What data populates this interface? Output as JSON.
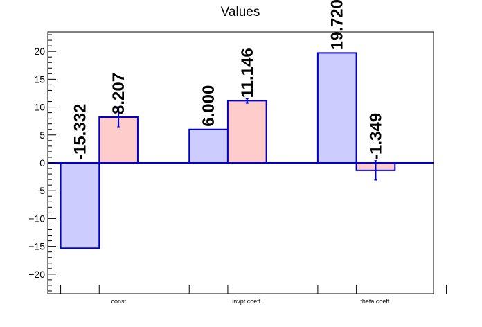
{
  "chart_data": {
    "type": "bar",
    "title": "Values",
    "categories": [
      "const",
      "invpt coeff.",
      "theta coeff."
    ],
    "series": [
      {
        "values": [
          -15.332,
          6.0,
          19.72
        ],
        "labels": [
          "-15.332",
          "6.000",
          "19.720"
        ],
        "errors": [
          0,
          0,
          0
        ],
        "fill": "#ccccff",
        "stroke": "#0000cc"
      },
      {
        "values": [
          8.207,
          11.146,
          -1.349
        ],
        "labels": [
          "8.207",
          "11.146",
          "-1.349"
        ],
        "errors": [
          1.8,
          0.4,
          1.7
        ],
        "fill": "#ffcccc",
        "stroke": "#0000cc"
      }
    ],
    "y_ticks": [
      -20,
      -15,
      -10,
      -5,
      0,
      5,
      10,
      15,
      20
    ],
    "ylim": [
      -23.5,
      23.5
    ],
    "xlabel": "",
    "ylabel": "",
    "grid": false,
    "legend": "none"
  }
}
